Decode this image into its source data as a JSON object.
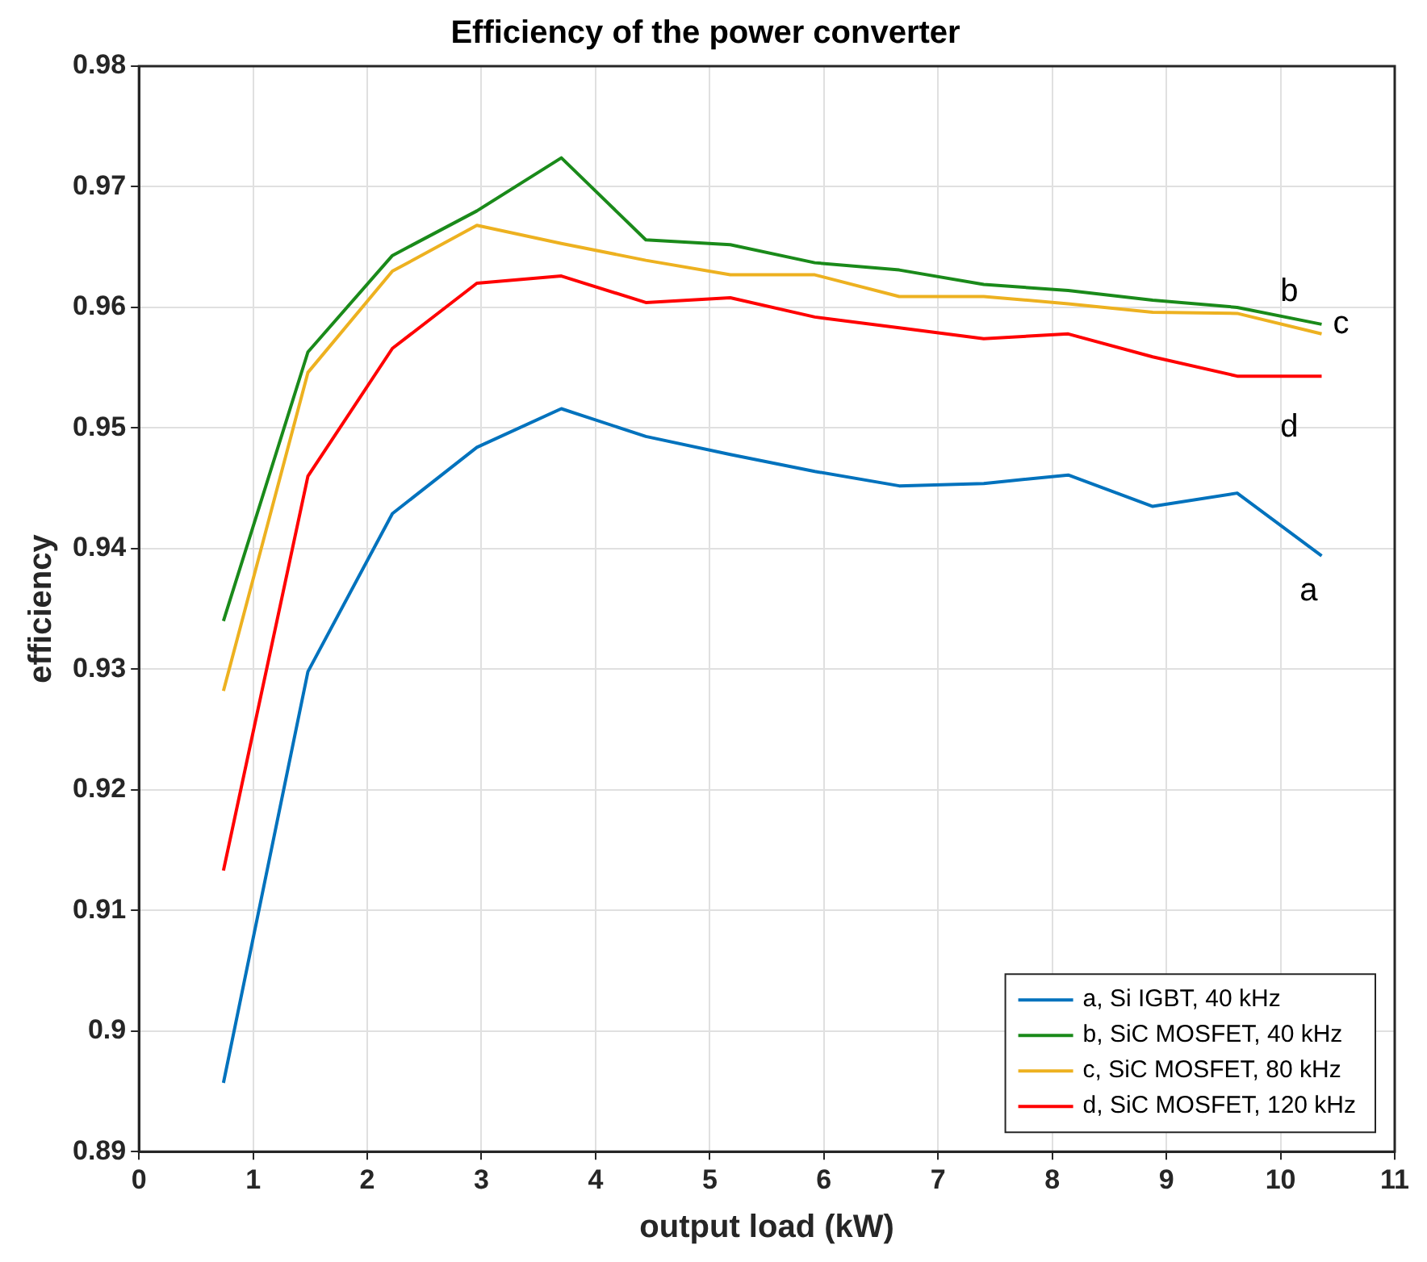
{
  "chart_data": {
    "type": "line",
    "title": "Efficiency of the power converter",
    "xlabel": "output load (kW)",
    "ylabel": "efficiency",
    "x": [
      0.74,
      1.48,
      2.22,
      2.96,
      3.7,
      4.44,
      5.18,
      5.92,
      6.66,
      7.4,
      8.14,
      8.88,
      9.62,
      10.36
    ],
    "series": [
      {
        "name": "a, Si IGBT, 40 kHz",
        "color": "#0072bd",
        "values": [
          0.8957,
          0.9298,
          0.9429,
          0.9484,
          0.9516,
          0.9493,
          0.9478,
          0.9464,
          0.9452,
          0.9454,
          0.9461,
          0.9435,
          0.9446,
          0.9394
        ]
      },
      {
        "name": "b, SiC MOSFET, 40 kHz",
        "color": "#1a8a1a",
        "values": [
          0.934,
          0.9563,
          0.9643,
          0.968,
          0.9724,
          0.9656,
          0.9652,
          0.9637,
          0.9631,
          0.9619,
          0.9614,
          0.9606,
          0.96,
          0.9586
        ]
      },
      {
        "name": "c, SiC MOSFET, 80 kHz",
        "color": "#edb120",
        "values": [
          0.9282,
          0.9546,
          0.963,
          0.9668,
          0.9653,
          0.9639,
          0.9627,
          0.9627,
          0.9609,
          0.9609,
          0.9603,
          0.9596,
          0.9595,
          0.9578
        ]
      },
      {
        "name": "d, SiC MOSFET, 120 kHz",
        "color": "#ff0000",
        "values": [
          0.9133,
          0.946,
          0.9566,
          0.962,
          0.9626,
          0.9604,
          0.9608,
          0.9592,
          0.9583,
          0.9574,
          0.9578,
          0.9559,
          0.9543,
          0.9543
        ]
      }
    ],
    "annotations": [
      "a",
      "b",
      "c",
      "d"
    ],
    "xlim": [
      0,
      11
    ],
    "xticks": [
      0,
      1,
      2,
      3,
      4,
      5,
      6,
      7,
      8,
      9,
      10,
      11
    ],
    "ylim": [
      0.89,
      0.98
    ],
    "yticks": [
      0.89,
      0.9,
      0.91,
      0.92,
      0.93,
      0.94,
      0.95,
      0.96,
      0.97,
      0.98
    ],
    "grid": true,
    "legend": "bottom right",
    "marker": "none",
    "line_style": "solid"
  }
}
